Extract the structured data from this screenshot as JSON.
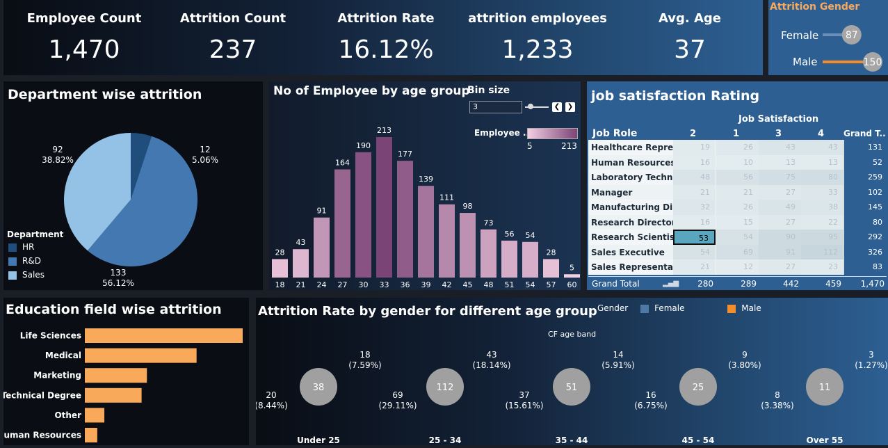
{
  "kpis": [
    {
      "label": "Employee Count",
      "value": "1,470"
    },
    {
      "label": "Attrition Count",
      "value": "237"
    },
    {
      "label": "Attrition Rate",
      "value": "16.12%"
    },
    {
      "label": "attrition employees",
      "value": "1,233"
    },
    {
      "label": "Avg. Age",
      "value": "37"
    }
  ],
  "attrition_gender": {
    "title": "Attrition Gender",
    "rows": [
      {
        "label": "Female",
        "value": "87",
        "num": 87
      },
      {
        "label": "Male",
        "value": "150",
        "num": 150
      }
    ],
    "max": 150,
    "colors": {
      "female": "#6b8fbd",
      "male": "#f28e2b"
    }
  },
  "department": {
    "title": "Department wise attrition",
    "legend_title": "Department",
    "slices": [
      {
        "name": "HR",
        "value": 12,
        "label_count": "12",
        "label_pct": "5.06%",
        "color": "#1f4e7d"
      },
      {
        "name": "R&D",
        "value": 133,
        "label_count": "133",
        "label_pct": "56.12%",
        "color": "#4378b0"
      },
      {
        "name": "Sales",
        "value": 92,
        "label_count": "92",
        "label_pct": "38.82%",
        "color": "#93c2e6"
      }
    ]
  },
  "age_hist": {
    "title": "No of Employee by age group",
    "bin_label": "Bin size",
    "bin_value": "3",
    "legend_label": "Employee ..",
    "legend_min": "5",
    "legend_max": "213"
  },
  "job_sat": {
    "title": "job satisfaction Rating",
    "header_group": "Job Satisfaction",
    "row_header": "Job Role",
    "cols": [
      "2",
      "1",
      "3",
      "4"
    ],
    "grand_col": "Grand T..",
    "rows": [
      {
        "role": "Healthcare Repre..",
        "vals": [
          "19",
          "26",
          "43",
          "43"
        ],
        "total": "131"
      },
      {
        "role": "Human Resources",
        "vals": [
          "16",
          "10",
          "13",
          "13"
        ],
        "total": "52"
      },
      {
        "role": "Laboratory Techn..",
        "vals": [
          "48",
          "56",
          "75",
          "80"
        ],
        "total": "259"
      },
      {
        "role": "Manager",
        "vals": [
          "21",
          "21",
          "27",
          "33"
        ],
        "total": "102"
      },
      {
        "role": "Manufacturing Di..",
        "vals": [
          "32",
          "26",
          "49",
          "38"
        ],
        "total": "145"
      },
      {
        "role": "Research Director",
        "vals": [
          "16",
          "15",
          "27",
          "22"
        ],
        "total": "80"
      },
      {
        "role": "Research Scientist",
        "vals": [
          "53",
          "54",
          "90",
          "95"
        ],
        "total": "292"
      },
      {
        "role": "Sales Executive",
        "vals": [
          "54",
          "69",
          "91",
          "112"
        ],
        "total": "326"
      },
      {
        "role": "Sales Representa..",
        "vals": [
          "21",
          "12",
          "27",
          "23"
        ],
        "total": "83"
      }
    ],
    "grand_label": "Grand Total",
    "grand_vals": [
      "280",
      "289",
      "442",
      "459"
    ],
    "grand_total": "1,470"
  },
  "education": {
    "title": "Education field wise attrition",
    "color": "#f9a95a"
  },
  "gender_age": {
    "title": "Attrition Rate by gender for different age group",
    "legend_title": "Gender",
    "legend": [
      {
        "name": "Female",
        "color": "#4e79a7"
      },
      {
        "name": "Male",
        "color": "#f28e2b"
      }
    ],
    "band_label": "CF age band",
    "bands": [
      {
        "name": "Under 25",
        "total": "38",
        "female": 18,
        "male": 20,
        "f_count": "18",
        "f_pct": "(7.59%)",
        "m_count": "20",
        "m_pct": "(8.44%)"
      },
      {
        "name": "25 - 34",
        "total": "112",
        "female": 43,
        "male": 69,
        "f_count": "43",
        "f_pct": "(18.14%)",
        "m_count": "69",
        "m_pct": "(29.11%)"
      },
      {
        "name": "35 - 44",
        "total": "51",
        "female": 14,
        "male": 37,
        "f_count": "14",
        "f_pct": "(5.91%)",
        "m_count": "37",
        "m_pct": "(15.61%)"
      },
      {
        "name": "45 - 54",
        "total": "25",
        "female": 9,
        "male": 16,
        "f_count": "9",
        "f_pct": "(3.80%)",
        "m_count": "16",
        "m_pct": "(6.75%)"
      },
      {
        "name": "Over 55",
        "total": "11",
        "female": 3,
        "male": 8,
        "f_count": "3",
        "f_pct": "(1.27%)",
        "m_count": "8",
        "m_pct": "(3.38%)"
      }
    ]
  },
  "chart_data": [
    {
      "type": "pie",
      "title": "Department wise attrition",
      "categories": [
        "HR",
        "R&D",
        "Sales"
      ],
      "values": [
        12,
        133,
        92
      ],
      "percents": [
        5.06,
        56.12,
        38.82
      ],
      "legend": "bottom-left"
    },
    {
      "type": "bar",
      "title": "No of Employee by age group",
      "categories": [
        "18",
        "21",
        "24",
        "27",
        "30",
        "33",
        "36",
        "39",
        "42",
        "45",
        "48",
        "51",
        "54",
        "57",
        "60"
      ],
      "values": [
        28,
        43,
        91,
        164,
        190,
        213,
        177,
        139,
        111,
        98,
        73,
        56,
        54,
        28,
        5
      ],
      "color_scale": {
        "min": 5,
        "max": 213,
        "from": "#f3cfe3",
        "to": "#7b4476"
      }
    },
    {
      "type": "bar",
      "orientation": "horizontal",
      "title": "Education field wise attrition",
      "categories": [
        "Life Sciences",
        "Medical",
        "Marketing",
        "Technical Degree",
        "Other",
        "Human Resources"
      ],
      "values": [
        89,
        63,
        35,
        32,
        11,
        7
      ]
    },
    {
      "type": "pie",
      "title": "Attrition Rate by gender for different age group",
      "categories": [
        "Under 25",
        "25 - 34",
        "35 - 44",
        "45 - 54",
        "Over 55"
      ],
      "series": [
        {
          "name": "Female",
          "values": [
            18,
            43,
            14,
            9,
            3
          ]
        },
        {
          "name": "Male",
          "values": [
            20,
            69,
            37,
            16,
            8
          ]
        }
      ]
    }
  ]
}
